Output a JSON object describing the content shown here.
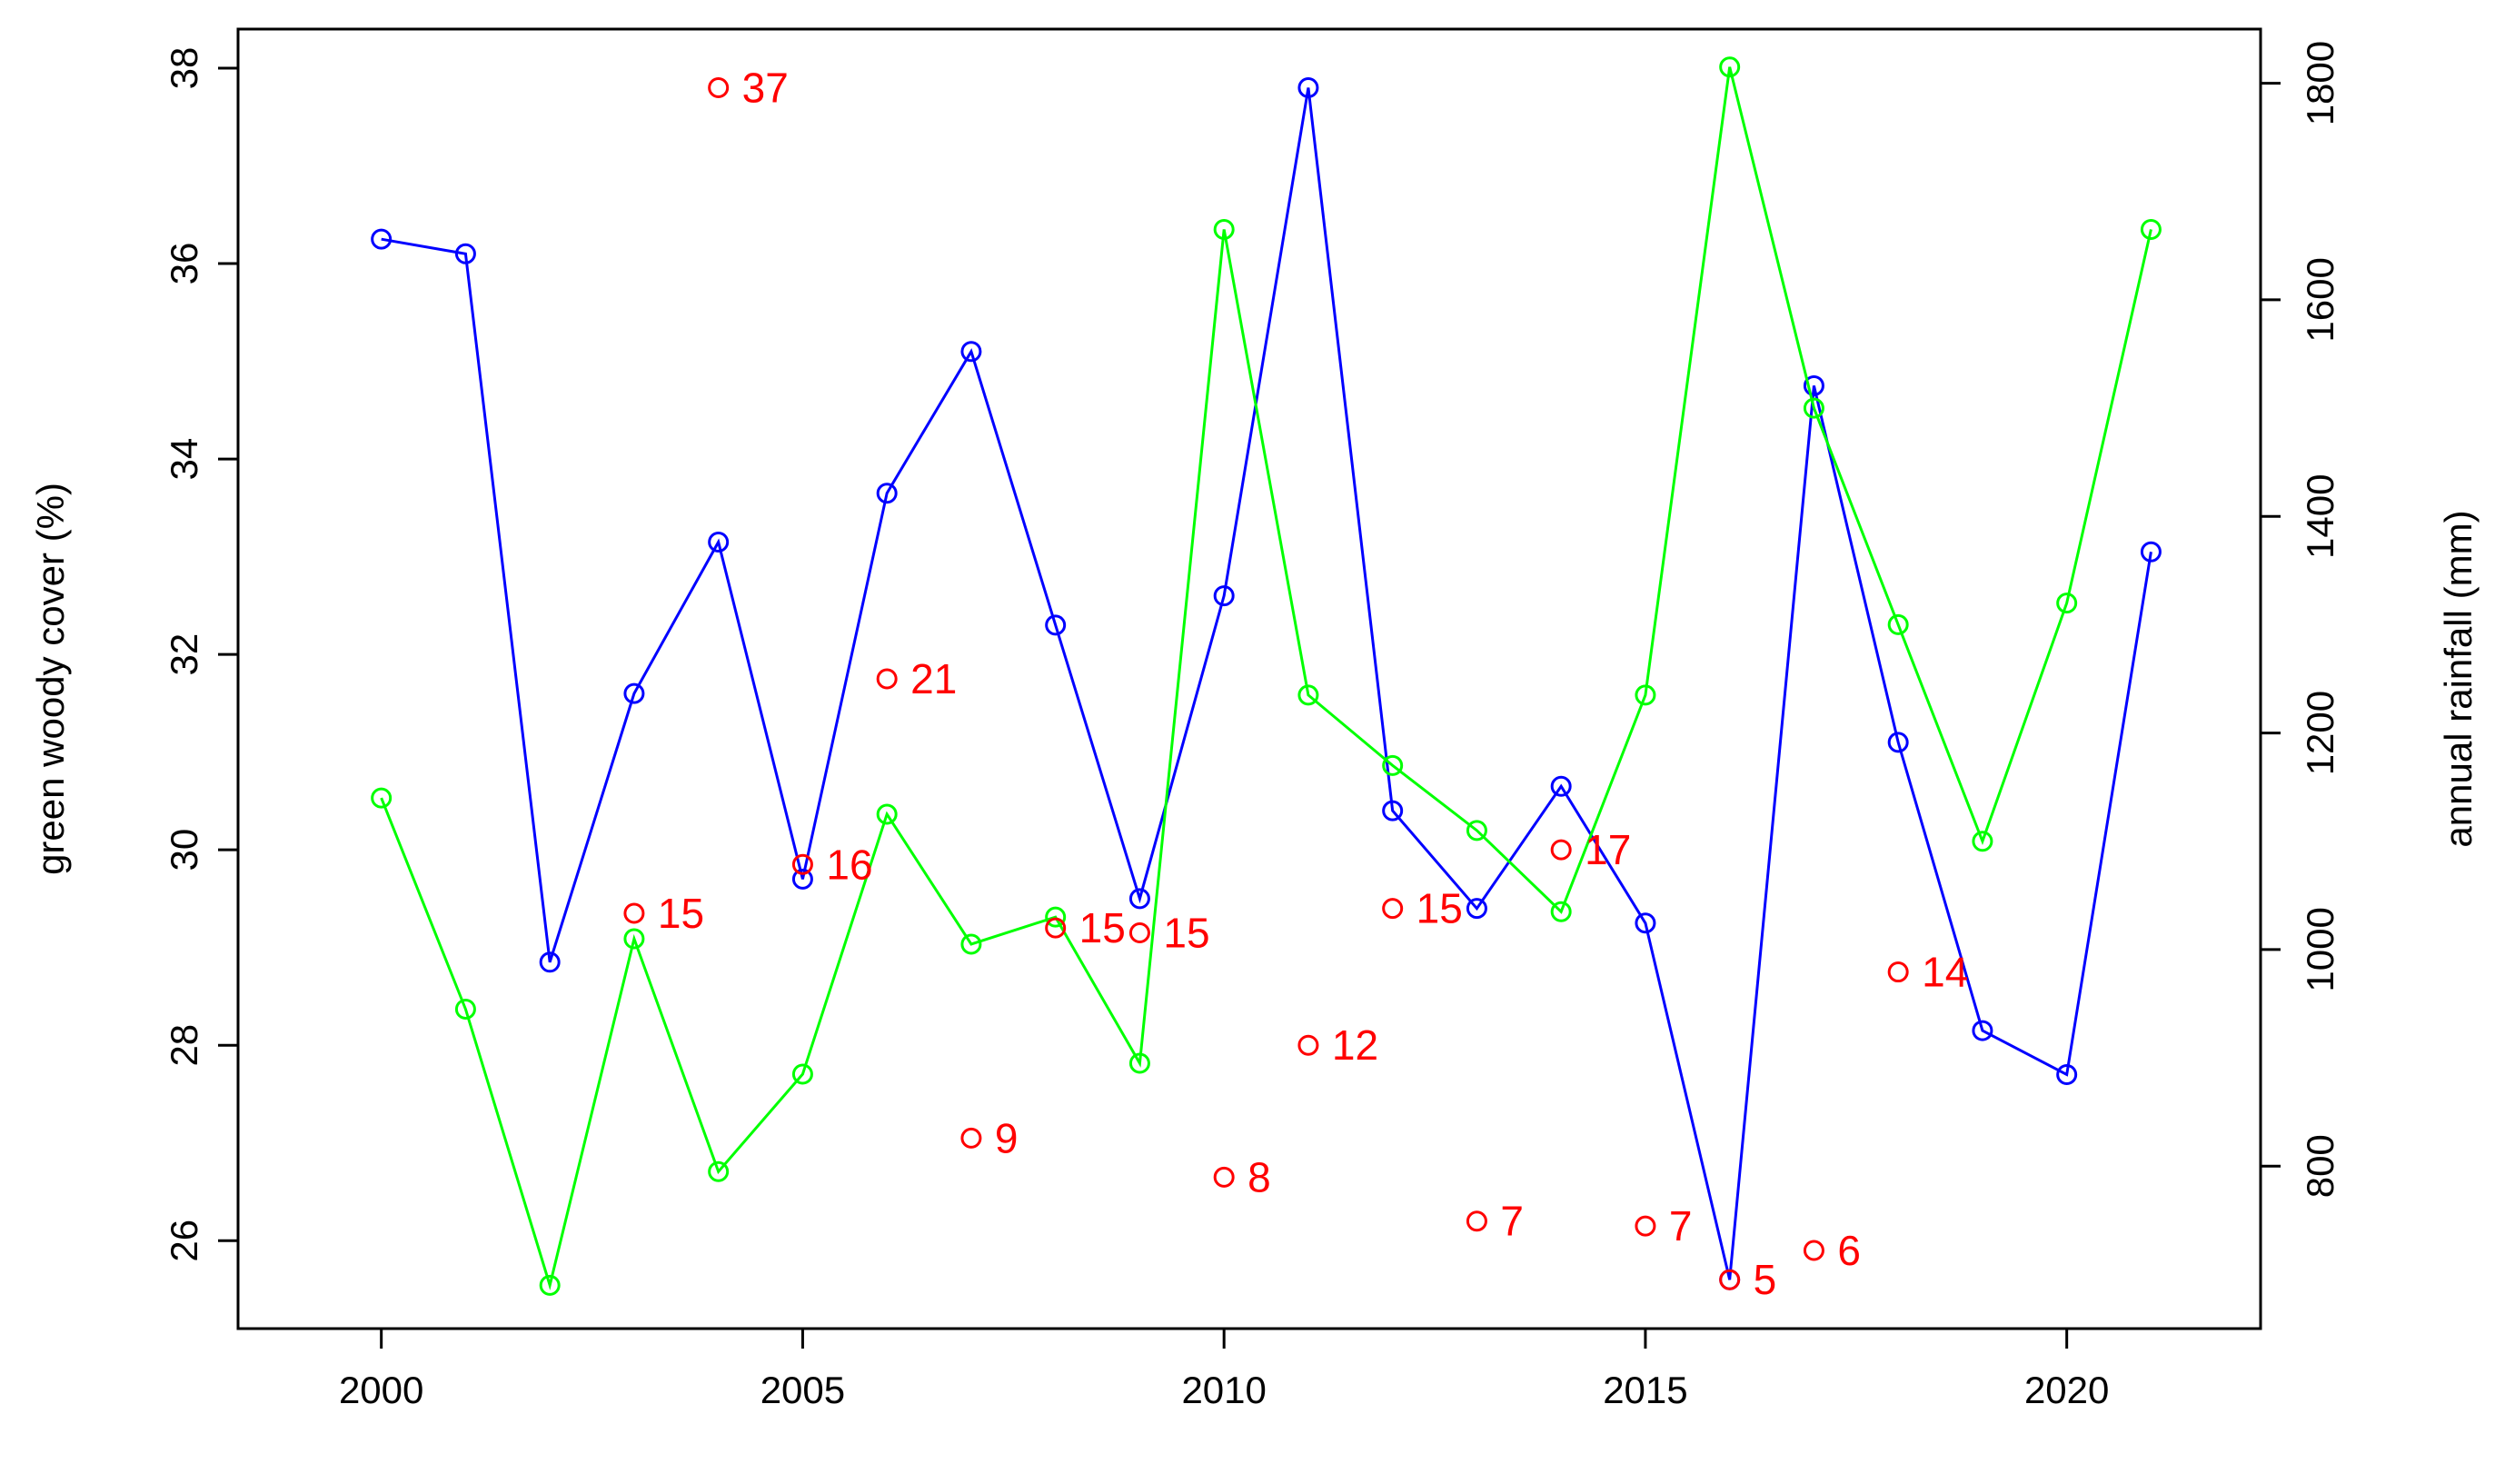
{
  "chart_data": {
    "type": "line",
    "title": "",
    "xlabel": "",
    "ylabel_left": "green woody cover (%)",
    "ylabel_right": "annual rainfall (mm)",
    "xlim": [
      1998.3,
      2022.3
    ],
    "ylim_left": [
      25.1,
      38.4
    ],
    "ylim_right": [
      650,
      1850
    ],
    "grid": false,
    "legend": "none",
    "x_ticks": [
      2000,
      2005,
      2010,
      2015,
      2020
    ],
    "y_left_ticks": [
      26,
      28,
      30,
      32,
      34,
      36,
      38
    ],
    "y_right_ticks": [
      800,
      1000,
      1200,
      1400,
      1600,
      1800
    ],
    "x": [
      2000,
      2001,
      2002,
      2003,
      2004,
      2005,
      2006,
      2007,
      2008,
      2009,
      2010,
      2011,
      2012,
      2013,
      2014,
      2015,
      2016,
      2017,
      2018,
      2019,
      2020,
      2021
    ],
    "series": [
      {
        "axis": "left",
        "color": "#0000ff",
        "values": [
          36.25,
          36.1,
          28.85,
          31.6,
          33.15,
          29.7,
          33.65,
          35.1,
          32.3,
          29.5,
          32.6,
          37.8,
          30.4,
          29.4,
          30.65,
          29.25,
          25.6,
          34.75,
          31.1,
          28.15,
          27.7,
          33.05
        ]
      },
      {
        "axis": "right",
        "color": "#00ff00",
        "values": [
          1140,
          945,
          690,
          1010,
          795,
          885,
          1125,
          1005,
          1030,
          895,
          1665,
          1235,
          1170,
          1110,
          1035,
          1235,
          1815,
          1500,
          1300,
          1100,
          1320,
          1665
        ]
      }
    ],
    "annotations": {
      "axis": "left",
      "color": "#ff0000",
      "points": [
        {
          "x": 2003,
          "y": 29.35,
          "label": "15"
        },
        {
          "x": 2004,
          "y": 37.8,
          "label": "37"
        },
        {
          "x": 2005,
          "y": 29.85,
          "label": "16"
        },
        {
          "x": 2006,
          "y": 31.75,
          "label": "21"
        },
        {
          "x": 2007,
          "y": 27.05,
          "label": "9"
        },
        {
          "x": 2008,
          "y": 29.2,
          "label": "15"
        },
        {
          "x": 2009,
          "y": 29.15,
          "label": "15"
        },
        {
          "x": 2010,
          "y": 26.65,
          "label": "8"
        },
        {
          "x": 2011,
          "y": 28.0,
          "label": "12"
        },
        {
          "x": 2012,
          "y": 29.4,
          "label": "15"
        },
        {
          "x": 2013,
          "y": 26.2,
          "label": "7"
        },
        {
          "x": 2014,
          "y": 30.0,
          "label": "17"
        },
        {
          "x": 2015,
          "y": 26.15,
          "label": "7"
        },
        {
          "x": 2016,
          "y": 25.6,
          "label": "5"
        },
        {
          "x": 2017,
          "y": 25.9,
          "label": "6"
        },
        {
          "x": 2018,
          "y": 28.75,
          "label": "14"
        }
      ]
    }
  }
}
